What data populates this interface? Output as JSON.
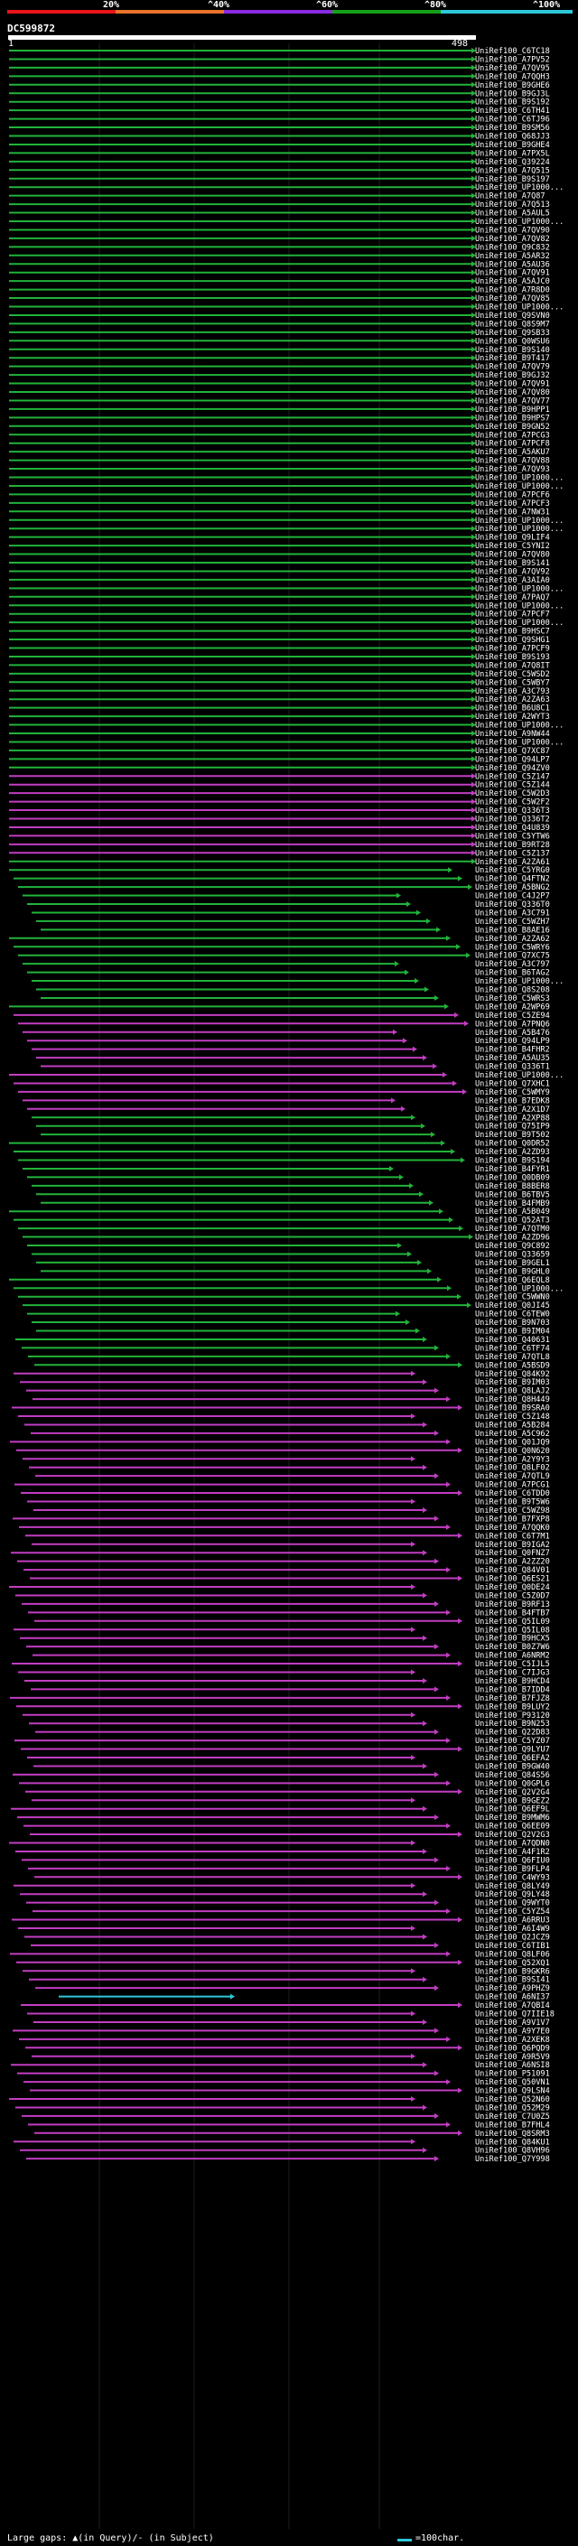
{
  "scale": {
    "labels": [
      "20%",
      "^40%",
      "^60%",
      "^80%",
      "^100%"
    ],
    "colors": [
      "#e8141a",
      "#e8732a",
      "#8a2be2",
      "#16a016",
      "#2ec9d8"
    ]
  },
  "query": {
    "name": "DC599872",
    "start": "1",
    "end": "498"
  },
  "colors": {
    "high": "#22b33a",
    "mid": "#c23dc2",
    "low": "#2ec9d8"
  },
  "hits": [
    "UniRef100_C6TC18",
    "UniRef100_A7PV52",
    "UniRef100_A7QV95",
    "UniRef100_A7QQH3",
    "UniRef100_B9GHE6",
    "UniRef100_B9GJ3L",
    "UniRef100_B9S192",
    "UniRef100_C6TH41",
    "UniRef100_C6TJ96",
    "UniRef100_B9SM56",
    "UniRef100_Q68JJ3",
    "UniRef100_B9GHE4",
    "UniRef100_A7PX5L",
    "UniRef100_Q39224",
    "UniRef100_A7Q515",
    "UniRef100_B9S197",
    "UniRef100_UP1000...",
    "UniRef100_A7Q87",
    "UniRef100_A7Q513",
    "UniRef100_A5AUL5",
    "UniRef100_UP1000...",
    "UniRef100_A7QV90",
    "UniRef100_A7QV82",
    "UniRef100_Q9C832",
    "UniRef100_A5AR32",
    "UniRef100_A5AU36",
    "UniRef100_A7QV91",
    "UniRef100_A5AJC0",
    "UniRef100_A7R8D0",
    "UniRef100_A7QV85",
    "UniRef100_UP1000...",
    "UniRef100_Q9SVN0",
    "UniRef100_Q8S9M7",
    "UniRef100_Q9SB33",
    "UniRef100_Q0WSU6",
    "UniRef100_B9S140",
    "UniRef100_B9T417",
    "UniRef100_A7QV79",
    "UniRef100_B9GJ32",
    "UniRef100_A7QV91",
    "UniRef100_A7QV80",
    "UniRef100_A7QV77",
    "UniRef100_B9HPP1",
    "UniRef100_B9HPS7",
    "UniRef100_B9GN52",
    "UniRef100_A7PCG3",
    "UniRef100_A7PCF8",
    "UniRef100_A5AKU7",
    "UniRef100_A7QV88",
    "UniRef100_A7QV93",
    "UniRef100_UP1000...",
    "UniRef100_UP1000...",
    "UniRef100_A7PCF6",
    "UniRef100_A7PCF3",
    "UniRef100_A7NW31",
    "UniRef100_UP1000...",
    "UniRef100_UP1000...",
    "UniRef100_Q9LIF4",
    "UniRef100_C5YNI2",
    "UniRef100_A7QV80",
    "UniRef100_B9S141",
    "UniRef100_A7QV92",
    "UniRef100_A3AIA0",
    "UniRef100_UP1000...",
    "UniRef100_A7PAQ7",
    "UniRef100_UP1000...",
    "UniRef100_A7PCF7",
    "UniRef100_UP1000...",
    "UniRef100_B9HSC7",
    "UniRef100_Q9SHG1",
    "UniRef100_A7PCF9",
    "UniRef100_B9S193",
    "UniRef100_A7Q8IT",
    "UniRef100_C5WSD2",
    "UniRef100_C5WBY7",
    "UniRef100_A3C793",
    "UniRef100_A2ZA63",
    "UniRef100_B6U8C1",
    "UniRef100_A2WYT3",
    "UniRef100_UP1000...",
    "UniRef100_A9NW44",
    "UniRef100_UP1000...",
    "UniRef100_Q7XC87",
    "UniRef100_Q94LP7",
    "UniRef100_Q94ZV0",
    "UniRef100_C5Z147",
    "UniRef100_C5Z144",
    "UniRef100_C5W2D3",
    "UniRef100_C5W2F2",
    "UniRef100_Q336T3",
    "UniRef100_Q336T2",
    "UniRef100_Q4U839",
    "UniRef100_C5YTW6",
    "UniRef100_B9RT28",
    "UniRef100_C5Z137",
    "UniRef100_A2ZA61",
    "UniRef100_C5YRG0",
    "UniRef100_Q4FTN2",
    "UniRef100_A5BNG2",
    "UniRef100_C4J2P7",
    "UniRef100_Q336T0",
    "UniRef100_A3C791",
    "UniRef100_C5WZH7",
    "UniRef100_B8AE16",
    "UniRef100_A2ZA62",
    "UniRef100_C5WRY6",
    "UniRef100_Q7XC75",
    "UniRef100_A3C797",
    "UniRef100_B6TAG2",
    "UniRef100_UP1000...",
    "UniRef100_Q8S208",
    "UniRef100_C5WRS3",
    "UniRef100_A2WP69",
    "UniRef100_C5ZE94",
    "UniRef100_A7PNQ6",
    "UniRef100_A5B476",
    "UniRef100_Q94LP9",
    "UniRef100_B4FHR2",
    "UniRef100_A5AU35",
    "UniRef100_Q336T1",
    "UniRef100_UP1000...",
    "UniRef100_Q7XHC1",
    "UniRef100_C5WMY9",
    "UniRef100_B7EDK8",
    "UniRef100_A2X1D7",
    "UniRef100_A2XP88",
    "UniRef100_Q75IP9",
    "UniRef100_B9T502",
    "UniRef100_Q0DR52",
    "UniRef100_A2ZD93",
    "UniRef100_B9S194",
    "UniRef100_B4FYR1",
    "UniRef100_Q0DB09",
    "UniRef100_B8BER8",
    "UniRef100_B6TBV5",
    "UniRef100_B4FMB9",
    "UniRef100_A5B049",
    "UniRef100_Q52AT3",
    "UniRef100_A7QTM0",
    "UniRef100_A2ZD96",
    "UniRef100_Q9C892",
    "UniRef100_Q33659",
    "UniRef100_B9GEL1",
    "UniRef100_B9GHL0",
    "UniRef100_Q6EQL8",
    "UniRef100_UP1000...",
    "UniRef100_C5WWN0",
    "UniRef100_Q0JI45",
    "UniRef100_C6TEW0",
    "UniRef100_B9N703",
    "UniRef100_B9IM04",
    "UniRef100_Q40631",
    "UniRef100_C6TF74",
    "UniRef100_A7QTL8",
    "UniRef100_A5BSD9",
    "UniRef100_Q84K92",
    "UniRef100_B9IM03",
    "UniRef100_Q8LAJ2",
    "UniRef100_Q8H449",
    "UniRef100_B9SRA0",
    "UniRef100_C5Z148",
    "UniRef100_A5B284",
    "UniRef100_A5C962",
    "UniRef100_Q01JQ9",
    "UniRef100_Q0N620",
    "UniRef100_A2Y9Y3",
    "UniRef100_Q8LF02",
    "UniRef100_A7QTL9",
    "UniRef100_A7PCG1",
    "UniRef100_C6TDD0",
    "UniRef100_B9T5W6",
    "UniRef100_C5WZ98",
    "UniRef100_B7FXP8",
    "UniRef100_A7QQK0",
    "UniRef100_C6T7M1",
    "UniRef100_B9IGA2",
    "UniRef100_Q0FNZ7",
    "UniRef100_A2ZZ20",
    "UniRef100_Q84V01",
    "UniRef100_Q6ES21",
    "UniRef100_Q0DE24",
    "UniRef100_C5Z0D7",
    "UniRef100_B9RF13",
    "UniRef100_B4FTB7",
    "UniRef100_Q5IL09",
    "UniRef100_Q5IL08",
    "UniRef100_B9HCX5",
    "UniRef100_B0Z7W6",
    "UniRef100_A6NRM2",
    "UniRef100_C5IJL5",
    "UniRef100_C7IJG3",
    "UniRef100_B9HCD4",
    "UniRef100_B7IDD4",
    "UniRef100_B7FJZ8",
    "UniRef100_B9LUY2",
    "UniRef100_P93120",
    "UniRef100_B9N253",
    "UniRef100_Q22D83",
    "UniRef100_C5YZ07",
    "UniRef100_Q9LYU7",
    "UniRef100_Q6EFA2",
    "UniRef100_B9GW40",
    "UniRef100_Q84S56",
    "UniRef100_Q0GPL6",
    "UniRef100_Q2V2G4",
    "UniRef100_B9GEZ2",
    "UniRef100_Q6EF9L",
    "UniRef100_B9MWM6",
    "UniRef100_Q6EE09",
    "UniRef100_Q2V2G3",
    "UniRef100_A7QDN0",
    "UniRef100_A4F1R2",
    "UniRef100_Q6FIU0",
    "UniRef100_B9FLP4",
    "UniRef100_C4WY93",
    "UniRef100_Q8LY49",
    "UniRef100_Q9LY48",
    "UniRef100_Q9WYT0",
    "UniRef100_C5YZ54",
    "UniRef100_A6RRU3",
    "UniRef100_A6I4W9",
    "UniRef100_Q2JCZ9",
    "UniRef100_C6TIB1",
    "UniRef100_Q8LF06",
    "UniRef100_Q52XQ1",
    "UniRef100_B9GKR6",
    "UniRef100_B9SI41",
    "UniRef100_A9PHZ9",
    "UniRef100_A6NI37",
    "UniRef100_A7QBI4",
    "UniRef100_Q7IIE18",
    "UniRef100_A9V1V7",
    "UniRef100_A9Y7E0",
    "UniRef100_A2XEK8",
    "UniRef100_Q6PQD9",
    "UniRef100_A9R5V9",
    "UniRef100_A6NSI8",
    "UniRef100_P51091",
    "UniRef100_Q50VN1",
    "UniRef100_Q9LSN4",
    "UniRef100_Q52N60",
    "UniRef100_Q52M29",
    "UniRef100_C7U0Z5",
    "UniRef100_B7FHL4",
    "UniRef100_Q8SRM3",
    "UniRef100_Q84KU1",
    "UniRef100_Q8VH96",
    "UniRef100_Q7Y998"
  ],
  "legend": {
    "text": "Large gaps: ▲(in Query)/- (in Subject)",
    "unit": "=100char."
  }
}
